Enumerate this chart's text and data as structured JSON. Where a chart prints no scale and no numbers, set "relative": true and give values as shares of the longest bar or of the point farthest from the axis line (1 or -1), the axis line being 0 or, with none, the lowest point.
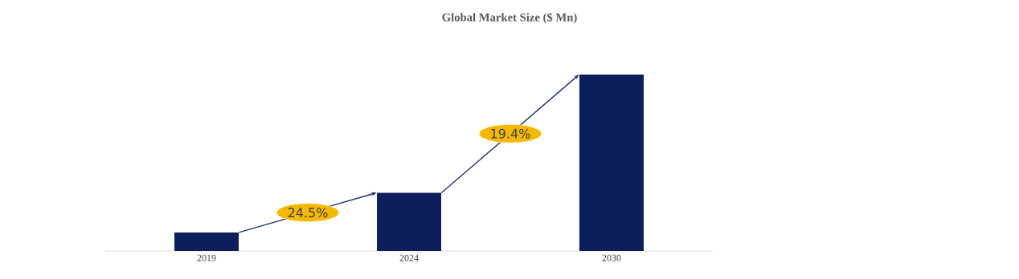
{
  "chart_data": {
    "type": "bar",
    "title": "Global Market Size ($ Mn)",
    "categories": [
      "2019",
      "2024",
      "2030"
    ],
    "values": [
      0.105,
      0.33,
      1
    ],
    "color": "#0c1f5c",
    "relative": true,
    "annotations": [
      "24.5%",
      "19.4%"
    ]
  }
}
